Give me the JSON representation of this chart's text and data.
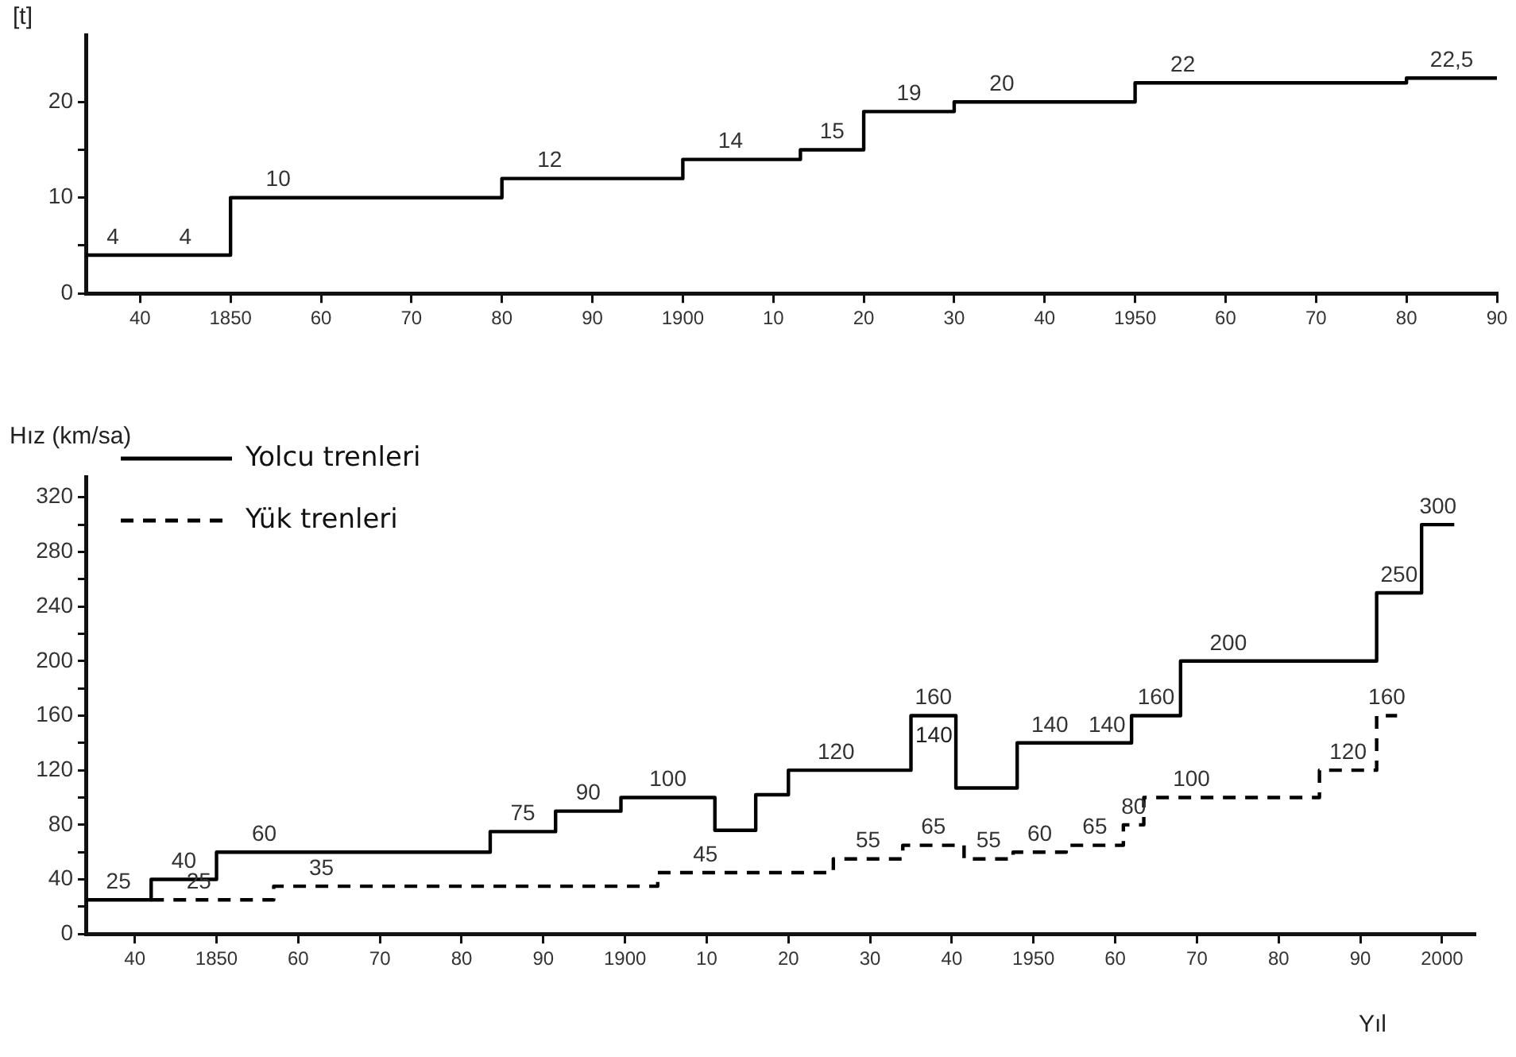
{
  "chart_data": [
    {
      "type": "step",
      "ylabel": "[t]",
      "x": [
        1834,
        1840,
        1850,
        1880,
        1900,
        1913,
        1920,
        1930,
        1950,
        1980,
        1990
      ],
      "values": [
        4,
        4,
        10,
        12,
        14,
        15,
        19,
        20,
        22,
        22.5,
        22.5
      ],
      "value_labels": [
        "4",
        "4",
        "10",
        "12",
        "14",
        "15",
        "19",
        "20",
        "22",
        "22,5",
        null
      ],
      "color": "#000000",
      "xlim": [
        1834,
        1990
      ],
      "xticks": [
        {
          "value": 1840,
          "label": "40"
        },
        {
          "value": 1850,
          "label": "1850"
        },
        {
          "value": 1860,
          "label": "60"
        },
        {
          "value": 1870,
          "label": "70"
        },
        {
          "value": 1880,
          "label": "80"
        },
        {
          "value": 1890,
          "label": "90"
        },
        {
          "value": 1900,
          "label": "1900"
        },
        {
          "value": 1910,
          "label": "10"
        },
        {
          "value": 1920,
          "label": "20"
        },
        {
          "value": 1930,
          "label": "30"
        },
        {
          "value": 1940,
          "label": "40"
        },
        {
          "value": 1950,
          "label": "1950"
        },
        {
          "value": 1960,
          "label": "60"
        },
        {
          "value": 1970,
          "label": "70"
        },
        {
          "value": 1980,
          "label": "80"
        },
        {
          "value": 1990,
          "label": "90"
        }
      ],
      "ylim": [
        0,
        27
      ],
      "yticks": [
        0,
        {
          "value": 5,
          "label": null
        },
        10,
        {
          "value": 15,
          "label": null
        },
        20
      ],
      "grid": false,
      "legend": false
    },
    {
      "type": "step",
      "xlabel": "Yıl",
      "ylabel": "Hız (km/sa)",
      "series": [
        {
          "name": "Yolcu trenleri",
          "color": "#000000",
          "line_style": "solid",
          "x": [
            1834,
            1842,
            1850,
            1883.5,
            1891.5,
            1899.5,
            1911,
            1916,
            1920,
            1935,
            1940.5,
            1948,
            1956,
            1962,
            1968,
            1992,
            1997.5,
            2001.5
          ],
          "values": [
            25,
            40,
            60,
            75,
            90,
            100,
            76,
            102,
            120,
            160,
            107,
            140,
            140,
            160,
            200,
            250,
            300,
            300
          ],
          "value_labels": [
            "25",
            "40",
            "60",
            "75",
            "90",
            "100",
            null,
            null,
            "120",
            "160",
            null,
            "140",
            "140",
            "160",
            "200",
            "250",
            "300",
            null
          ]
        },
        {
          "name": "Yük trenleri",
          "color": "#000000",
          "line_style": "dashed",
          "x": [
            1842,
            1857,
            1904,
            1925.5,
            1934,
            1941.5,
            1947.5,
            1954,
            1961,
            1963.5,
            1985,
            1992,
            1994.5
          ],
          "values": [
            25,
            35,
            45,
            55,
            65,
            55,
            60,
            65,
            80,
            100,
            120,
            160,
            160
          ],
          "value_labels": [
            "25",
            "35",
            "45",
            "55",
            "65",
            "55",
            "60",
            "65",
            "80",
            "100",
            "120",
            "160",
            null
          ]
        }
      ],
      "annotations": [
        "140"
      ],
      "xlim": [
        1834,
        2004
      ],
      "xticks": [
        {
          "value": 1840,
          "label": "40"
        },
        {
          "value": 1850,
          "label": "1850"
        },
        {
          "value": 1860,
          "label": "60"
        },
        {
          "value": 1870,
          "label": "70"
        },
        {
          "value": 1880,
          "label": "80"
        },
        {
          "value": 1890,
          "label": "90"
        },
        {
          "value": 1900,
          "label": "1900"
        },
        {
          "value": 1910,
          "label": "10"
        },
        {
          "value": 1920,
          "label": "20"
        },
        {
          "value": 1930,
          "label": "30"
        },
        {
          "value": 1940,
          "label": "40"
        },
        {
          "value": 1950,
          "label": "1950"
        },
        {
          "value": 1960,
          "label": "60"
        },
        {
          "value": 1970,
          "label": "70"
        },
        {
          "value": 1980,
          "label": "80"
        },
        {
          "value": 1990,
          "label": "90"
        },
        {
          "value": 2000,
          "label": "2000"
        }
      ],
      "ylim": [
        0,
        335
      ],
      "yticks": [
        0,
        {
          "value": 20,
          "label": null
        },
        40,
        {
          "value": 60,
          "label": null
        },
        80,
        {
          "value": 100,
          "label": null
        },
        120,
        {
          "value": 140,
          "label": null
        },
        160,
        {
          "value": 180,
          "label": null
        },
        200,
        {
          "value": 220,
          "label": null
        },
        240,
        {
          "value": 260,
          "label": null
        },
        280,
        {
          "value": 300,
          "label": null
        },
        320
      ],
      "grid": false,
      "legend": "top left"
    }
  ]
}
